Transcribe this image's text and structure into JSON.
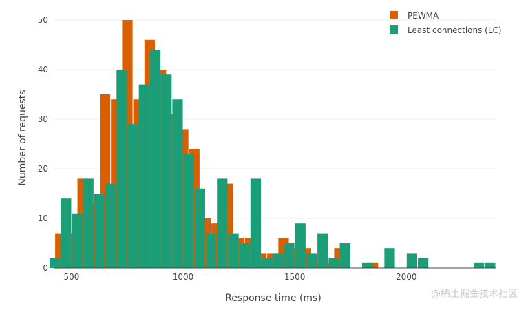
{
  "chart_data": {
    "type": "bar",
    "title": "",
    "xlabel": "Response time (ms)",
    "ylabel": "Number of requests",
    "xlim": [
      420,
      2400
    ],
    "ylim": [
      0,
      50
    ],
    "x_ticks": [
      500,
      1000,
      1500,
      2000
    ],
    "y_ticks": [
      0,
      10,
      20,
      30,
      40,
      50
    ],
    "grid": true,
    "legend_position": "top-right",
    "bin_width": 50,
    "series": [
      {
        "name": "PEWMA",
        "color": "#d95f02",
        "x": [
          450,
          500,
          550,
          600,
          650,
          700,
          750,
          800,
          850,
          900,
          950,
          1000,
          1050,
          1100,
          1150,
          1200,
          1250,
          1300,
          1350,
          1400,
          1450,
          1500,
          1550,
          1600,
          1650,
          1700,
          1850
        ],
        "values": [
          7,
          7,
          18,
          13,
          35,
          34,
          50,
          34,
          46,
          40,
          31,
          28,
          24,
          10,
          9,
          17,
          6,
          6,
          3,
          3,
          6,
          4,
          4,
          1,
          1,
          4,
          1
        ]
      },
      {
        "name": "Least connections (LC)",
        "color": "#1b9e77",
        "x": [
          425,
          475,
          525,
          575,
          625,
          675,
          725,
          775,
          825,
          875,
          925,
          975,
          1025,
          1075,
          1125,
          1175,
          1225,
          1275,
          1325,
          1375,
          1425,
          1475,
          1525,
          1575,
          1625,
          1675,
          1725,
          1825,
          1925,
          2025,
          2075,
          2325,
          2375
        ],
        "values": [
          2,
          14,
          11,
          18,
          15,
          17,
          40,
          29,
          37,
          44,
          39,
          34,
          23,
          16,
          7,
          18,
          7,
          5,
          18,
          2,
          3,
          5,
          9,
          3,
          7,
          2,
          5,
          1,
          4,
          3,
          2,
          1,
          1
        ]
      }
    ]
  },
  "watermark": {
    "text": "@稀土掘金技术社区"
  }
}
